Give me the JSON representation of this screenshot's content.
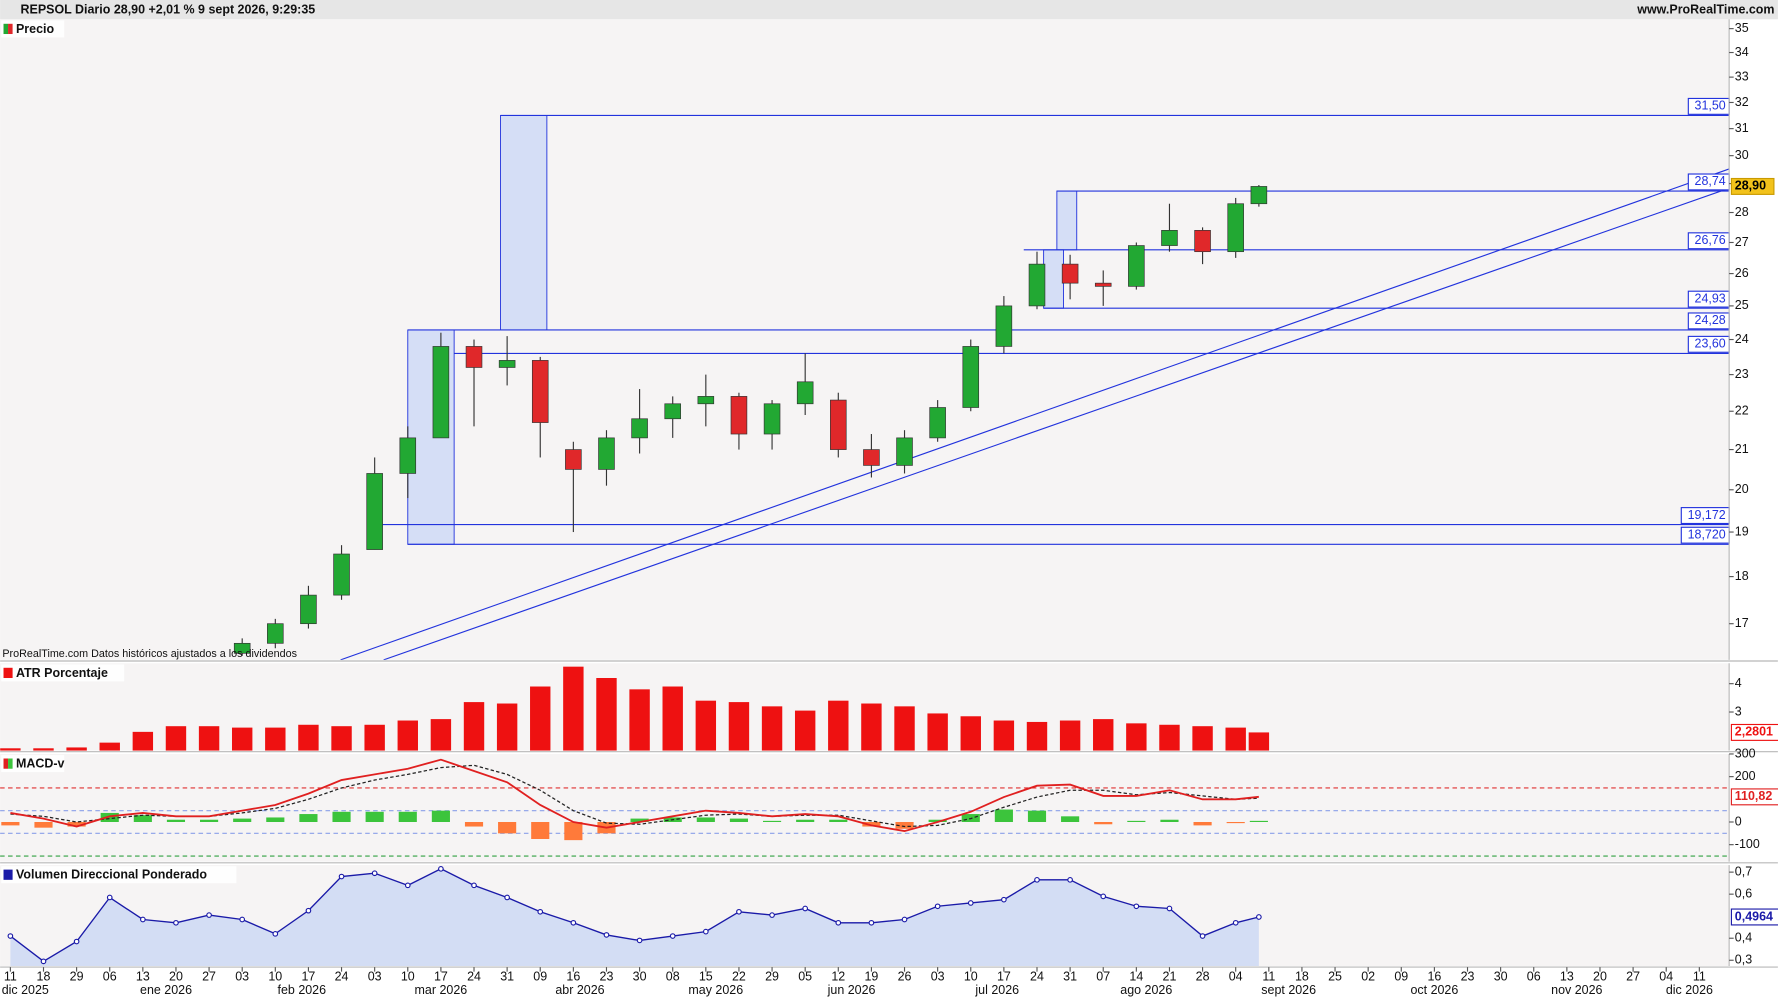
{
  "header": {
    "title": "REPSOL Diario 28,90 +2,01 % 9 sept 2026, 9:29:35",
    "site": "www.ProRealTime.com"
  },
  "x_axis": {
    "xlim": [
      -0.31,
      51.9
    ],
    "xticks": [
      {
        "value": 0,
        "label": "11"
      },
      {
        "value": 1,
        "label": "18"
      },
      {
        "value": 2,
        "label": "29"
      },
      {
        "value": 3,
        "label": "06"
      },
      {
        "value": 4,
        "label": "13"
      },
      {
        "value": 5,
        "label": "20"
      },
      {
        "value": 6,
        "label": "27"
      },
      {
        "value": 7,
        "label": "03"
      },
      {
        "value": 8,
        "label": "10"
      },
      {
        "value": 9,
        "label": "17"
      },
      {
        "value": 10,
        "label": "24"
      },
      {
        "value": 11,
        "label": "03"
      },
      {
        "value": 12,
        "label": "10"
      },
      {
        "value": 13,
        "label": "17"
      },
      {
        "value": 14,
        "label": "24"
      },
      {
        "value": 15,
        "label": "31"
      },
      {
        "value": 16,
        "label": "09"
      },
      {
        "value": 17,
        "label": "16"
      },
      {
        "value": 18,
        "label": "23"
      },
      {
        "value": 19,
        "label": "30"
      },
      {
        "value": 20,
        "label": "08"
      },
      {
        "value": 21,
        "label": "15"
      },
      {
        "value": 22,
        "label": "22"
      },
      {
        "value": 23,
        "label": "29"
      },
      {
        "value": 24,
        "label": "05"
      },
      {
        "value": 25,
        "label": "12"
      },
      {
        "value": 26,
        "label": "19"
      },
      {
        "value": 27,
        "label": "26"
      },
      {
        "value": 28,
        "label": "03"
      },
      {
        "value": 29,
        "label": "10"
      },
      {
        "value": 30,
        "label": "17"
      },
      {
        "value": 31,
        "label": "24"
      },
      {
        "value": 32,
        "label": "31"
      },
      {
        "value": 33,
        "label": "07"
      },
      {
        "value": 34,
        "label": "14"
      },
      {
        "value": 35,
        "label": "21"
      },
      {
        "value": 36,
        "label": "28"
      },
      {
        "value": 37,
        "label": "04"
      },
      {
        "value": 38,
        "label": "11"
      },
      {
        "value": 39,
        "label": "18"
      },
      {
        "value": 40,
        "label": "25"
      },
      {
        "value": 41,
        "label": "02"
      },
      {
        "value": 42,
        "label": "09"
      },
      {
        "value": 43,
        "label": "16"
      },
      {
        "value": 44,
        "label": "23"
      },
      {
        "value": 45,
        "label": "30"
      },
      {
        "value": 46,
        "label": "06"
      },
      {
        "value": 47,
        "label": "13"
      },
      {
        "value": 48,
        "label": "20"
      },
      {
        "value": 49,
        "label": "27"
      },
      {
        "value": 50,
        "label": "04"
      },
      {
        "value": 51,
        "label": "11"
      }
    ],
    "months": [
      {
        "value": 0.45,
        "label": "dic 2025"
      },
      {
        "value": 4.7,
        "label": "ene 2026"
      },
      {
        "value": 8.8,
        "label": "feb 2026"
      },
      {
        "value": 13,
        "label": "mar 2026"
      },
      {
        "value": 17.2,
        "label": "abr 2026"
      },
      {
        "value": 21.3,
        "label": "may 2026"
      },
      {
        "value": 25.4,
        "label": "jun 2026"
      },
      {
        "value": 29.8,
        "label": "jul 2026"
      },
      {
        "value": 34.3,
        "label": "ago 2026"
      },
      {
        "value": 38.6,
        "label": "sept 2026"
      },
      {
        "value": 43,
        "label": "oct 2026"
      },
      {
        "value": 47.3,
        "label": "nov 2026"
      },
      {
        "value": 50.7,
        "label": "dic 2026"
      }
    ]
  },
  "chart_data": [
    {
      "type": "candlestick",
      "title": "Precio",
      "note": "ProRealTime.com Datos históricos ajustados a los dividendos",
      "log": true,
      "ylim": [
        16.27,
        35.4
      ],
      "yticks": [
        17,
        18,
        19,
        20,
        21,
        22,
        23,
        24,
        25,
        26,
        27,
        28,
        29,
        30,
        31,
        32,
        33,
        34,
        35
      ],
      "x": [
        7,
        8,
        9,
        10,
        11,
        12,
        13,
        14,
        15,
        16,
        17,
        18,
        19,
        20,
        21,
        22,
        23,
        24,
        25,
        26,
        27,
        28,
        29,
        30,
        31,
        32,
        33,
        34,
        35,
        36,
        37,
        37.7
      ],
      "open": [
        16.4,
        16.6,
        17.0,
        17.6,
        18.6,
        20.4,
        21.3,
        23.8,
        23.2,
        23.4,
        21.0,
        20.5,
        21.3,
        21.8,
        22.2,
        22.4,
        21.4,
        22.2,
        22.3,
        21.0,
        20.6,
        21.3,
        22.1,
        23.8,
        25.0,
        26.3,
        25.7,
        25.6,
        26.9,
        27.4,
        26.7,
        28.3
      ],
      "high": [
        16.7,
        17.1,
        17.8,
        18.7,
        20.8,
        21.6,
        24.2,
        24.0,
        24.1,
        23.5,
        21.2,
        21.5,
        22.6,
        22.4,
        23.0,
        22.5,
        22.3,
        23.6,
        22.5,
        21.4,
        21.5,
        22.3,
        24.0,
        25.3,
        26.7,
        26.6,
        26.1,
        27.0,
        28.3,
        27.5,
        28.5,
        28.95
      ],
      "low": [
        16.35,
        16.5,
        16.9,
        17.5,
        18.6,
        19.8,
        21.3,
        21.6,
        22.7,
        20.8,
        19.0,
        20.1,
        20.9,
        21.3,
        21.6,
        21.0,
        21.0,
        21.9,
        20.8,
        20.3,
        20.4,
        21.2,
        22.0,
        23.6,
        24.9,
        25.2,
        25.0,
        25.5,
        26.7,
        26.3,
        26.5,
        28.2
      ],
      "close": [
        16.6,
        17.0,
        17.6,
        18.5,
        20.4,
        21.3,
        23.8,
        23.2,
        23.4,
        21.7,
        20.5,
        21.3,
        21.8,
        22.2,
        22.4,
        21.4,
        22.2,
        22.8,
        21.0,
        20.6,
        21.3,
        22.1,
        23.8,
        25.0,
        26.3,
        25.7,
        25.6,
        26.9,
        27.4,
        26.7,
        28.3,
        28.9
      ],
      "color_up": "#22a833",
      "color_down": "#e0282a",
      "level_color": "#2233dd",
      "levels": [
        {
          "value": 31.5,
          "label": "31,50",
          "x0": 14.8
        },
        {
          "value": 28.74,
          "label": "28,74",
          "x0": 31.6
        },
        {
          "value": 26.76,
          "label": "26,76",
          "x0": 30.6
        },
        {
          "value": 24.93,
          "label": "24,93",
          "x0": 31.2
        },
        {
          "value": 24.28,
          "label": "24,28",
          "x0": 12.0
        },
        {
          "value": 23.6,
          "label": "23,60",
          "x0": 13.4
        },
        {
          "value": 19.172,
          "label": "19,172",
          "x0": 10.8
        },
        {
          "value": 18.72,
          "label": "18,720",
          "x0": 12.0
        }
      ],
      "boxes": [
        {
          "x": [
            12.0,
            13.4
          ],
          "y": [
            18.72,
            24.28
          ]
        },
        {
          "x": [
            14.8,
            16.2
          ],
          "y": [
            24.28,
            31.5
          ]
        },
        {
          "x": [
            31.6,
            32.2
          ],
          "y": [
            26.76,
            28.74
          ]
        },
        {
          "x": [
            31.2,
            31.8
          ],
          "y": [
            24.93,
            26.76
          ]
        }
      ],
      "trendlines": [
        {
          "x": [
            9.97,
            51.9
          ],
          "y": [
            16.27,
            29.52
          ]
        },
        {
          "x": [
            11.27,
            51.9
          ],
          "y": [
            16.27,
            28.84
          ]
        }
      ],
      "last_label": "28,90"
    },
    {
      "type": "bar",
      "title": "ATR Porcentaje",
      "ylim": [
        1.64,
        4.72
      ],
      "yticks": [
        3,
        4
      ],
      "color": "#ee1111",
      "x": [
        0,
        1,
        2,
        3,
        4,
        5,
        6,
        7,
        8,
        9,
        10,
        11,
        12,
        13,
        14,
        15,
        16,
        17,
        18,
        19,
        20,
        21,
        22,
        23,
        24,
        25,
        26,
        27,
        28,
        29,
        30,
        31,
        32,
        33,
        34,
        35,
        36,
        37,
        37.7
      ],
      "values": [
        1.72,
        1.72,
        1.75,
        1.92,
        2.3,
        2.5,
        2.5,
        2.45,
        2.45,
        2.55,
        2.5,
        2.55,
        2.7,
        2.75,
        3.35,
        3.3,
        3.9,
        4.6,
        4.2,
        3.8,
        3.9,
        3.4,
        3.35,
        3.2,
        3.05,
        3.4,
        3.3,
        3.2,
        2.95,
        2.85,
        2.7,
        2.65,
        2.7,
        2.75,
        2.6,
        2.55,
        2.5,
        2.45,
        2.2801
      ],
      "last_label": "2,2801"
    },
    {
      "type": "line",
      "title": "MACD-v",
      "ylim": [
        -175,
        300
      ],
      "yticks": [
        300,
        200,
        0,
        -100
      ],
      "x": [
        0,
        1,
        2,
        3,
        4,
        5,
        6,
        7,
        8,
        9,
        10,
        11,
        12,
        13,
        14,
        15,
        16,
        17,
        18,
        19,
        20,
        21,
        22,
        23,
        24,
        25,
        26,
        27,
        28,
        29,
        30,
        31,
        32,
        33,
        34,
        35,
        36,
        37,
        37.7
      ],
      "ref_lines": [
        {
          "value": 150,
          "color": "#e03030"
        },
        {
          "value": 50,
          "color": "#8aa0e8"
        },
        {
          "value": -50,
          "color": "#8aa0e8"
        },
        {
          "value": -150,
          "color": "#30a040"
        }
      ],
      "series": [
        {
          "style": "histogram",
          "color_up": "#3cc43c",
          "color_down": "#ff7a3a",
          "values": [
            -15,
            -25,
            -20,
            40,
            30,
            10,
            10,
            15,
            20,
            35,
            45,
            45,
            45,
            50,
            -20,
            -50,
            -75,
            -80,
            -50,
            15,
            20,
            20,
            15,
            5,
            10,
            10,
            -20,
            -30,
            10,
            35,
            55,
            50,
            25,
            -10,
            5,
            10,
            -15,
            -5,
            5
          ]
        },
        {
          "style": "dashed",
          "color": "#222222",
          "values": [
            35,
            25,
            0,
            15,
            30,
            25,
            25,
            40,
            60,
            100,
            150,
            185,
            210,
            240,
            250,
            210,
            140,
            50,
            -5,
            -10,
            10,
            30,
            35,
            25,
            30,
            30,
            5,
            -20,
            -15,
            15,
            65,
            110,
            140,
            140,
            120,
            130,
            115,
            100,
            105
          ]
        },
        {
          "style": "solid",
          "color": "#e02020",
          "values": [
            40,
            15,
            -20,
            25,
            40,
            25,
            25,
            50,
            75,
            125,
            185,
            210,
            235,
            275,
            225,
            175,
            75,
            0,
            -25,
            0,
            25,
            50,
            40,
            25,
            35,
            25,
            -15,
            -40,
            0,
            45,
            110,
            160,
            165,
            115,
            115,
            140,
            100,
            100,
            110.82
          ]
        }
      ],
      "last_label": "110,82"
    },
    {
      "type": "area",
      "title": "Volumen Direccional Ponderado",
      "ylim": [
        0.274,
        0.732
      ],
      "yticks": [
        {
          "value": 0.7,
          "label": "0,7"
        },
        {
          "value": 0.6,
          "label": "0,6"
        },
        {
          "value": 0.4,
          "label": "0,4"
        },
        {
          "value": 0.3,
          "label": "0,3"
        }
      ],
      "color": "#1a1aa8",
      "fill": "#d3ddf4",
      "x": [
        0,
        1,
        2,
        3,
        4,
        5,
        6,
        7,
        8,
        9,
        10,
        11,
        12,
        13,
        14,
        15,
        16,
        17,
        18,
        19,
        20,
        21,
        22,
        23,
        24,
        25,
        26,
        27,
        28,
        29,
        30,
        31,
        32,
        33,
        34,
        35,
        36,
        37,
        37.7
      ],
      "values": [
        0.41,
        0.295,
        0.385,
        0.585,
        0.485,
        0.47,
        0.505,
        0.485,
        0.42,
        0.525,
        0.68,
        0.695,
        0.64,
        0.715,
        0.64,
        0.585,
        0.52,
        0.47,
        0.415,
        0.39,
        0.41,
        0.43,
        0.52,
        0.505,
        0.535,
        0.47,
        0.47,
        0.485,
        0.545,
        0.56,
        0.575,
        0.665,
        0.665,
        0.59,
        0.545,
        0.535,
        0.41,
        0.47,
        0.4964
      ],
      "last_label": "0,4964"
    }
  ]
}
